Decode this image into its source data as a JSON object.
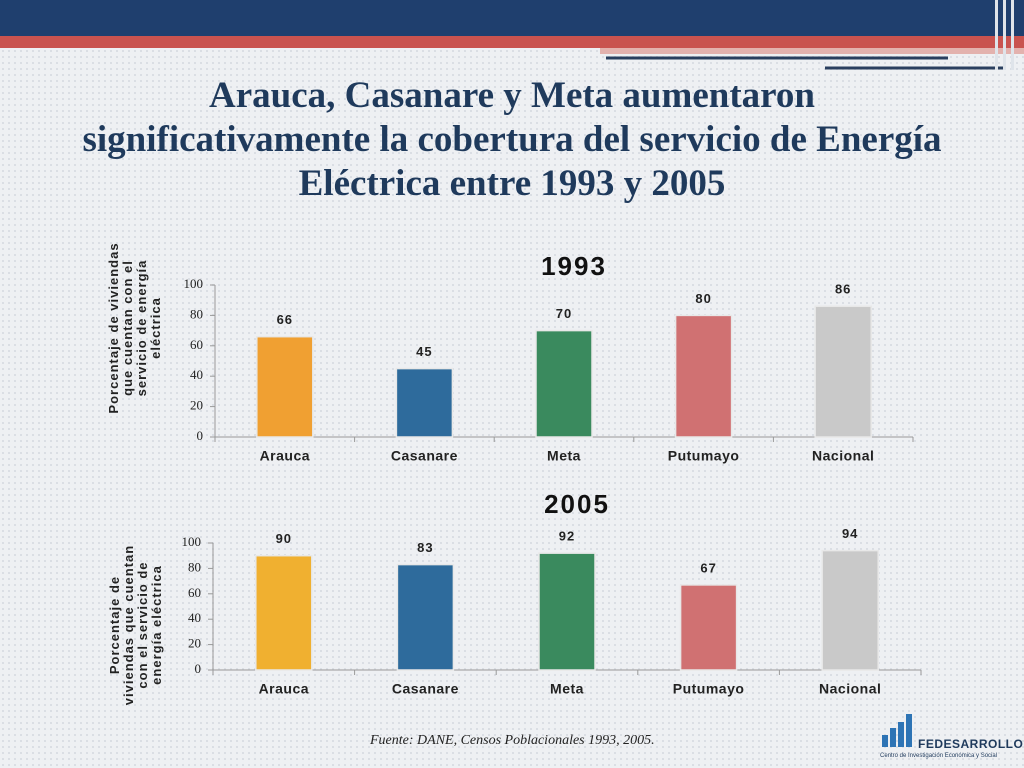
{
  "title": "Arauca, Casanare y Meta aumentaron significativamente la cobertura del servicio de Energía Eléctrica entre 1993 y 2005",
  "source": "Fuente: DANE, Censos Poblacionales 1993, 2005.",
  "logo": {
    "name": "FEDESARROLLO",
    "tagline": "Centro de Investigación Económica y Social"
  },
  "chart_data": [
    {
      "type": "bar",
      "title": "1993",
      "y_label": "Porcentaje de viviendas que cuentan con el servicio de energía eléctrica",
      "categories": [
        "Arauca",
        "Casanare",
        "Meta",
        "Putumayo",
        "Nacional"
      ],
      "values": [
        66,
        45,
        70,
        80,
        86
      ],
      "colors": [
        "#f0a032",
        "#2e6b9c",
        "#3a8a5e",
        "#d07172",
        "#c9c9c9"
      ],
      "ylim": [
        0,
        100
      ],
      "yticks": [
        0,
        20,
        40,
        60,
        80,
        100
      ]
    },
    {
      "type": "bar",
      "title": "2005",
      "y_label": "Porcentaje de viviendas que cuentan con el servicio de energía eléctrica",
      "categories": [
        "Arauca",
        "Casanare",
        "Meta",
        "Putumayo",
        "Nacional"
      ],
      "values": [
        90,
        83,
        92,
        67,
        94
      ],
      "colors": [
        "#f0b030",
        "#2e6b9c",
        "#3a8a5e",
        "#d07172",
        "#c9c9c9"
      ],
      "ylim": [
        0,
        100
      ],
      "yticks": [
        0,
        20,
        40,
        60,
        80,
        100
      ]
    }
  ]
}
